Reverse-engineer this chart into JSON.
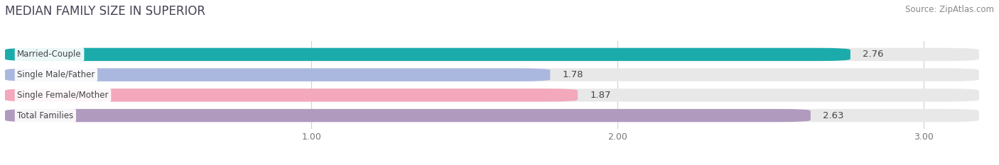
{
  "title": "MEDIAN FAMILY SIZE IN SUPERIOR",
  "source": "Source: ZipAtlas.com",
  "categories": [
    "Married-Couple",
    "Single Male/Father",
    "Single Female/Mother",
    "Total Families"
  ],
  "values": [
    2.76,
    1.78,
    1.87,
    2.63
  ],
  "bar_colors": [
    "#1aabaa",
    "#aab8e0",
    "#f4a8bc",
    "#b09abe"
  ],
  "bar_bg_color": "#e8e8e8",
  "xlim_left": 0.0,
  "xlim_right": 3.18,
  "xstart": 0.0,
  "xticks": [
    1.0,
    2.0,
    3.0
  ],
  "xtick_labels": [
    "1.00",
    "2.00",
    "3.00"
  ],
  "title_fontsize": 12,
  "source_fontsize": 8.5,
  "bar_label_fontsize": 9.5,
  "category_fontsize": 8.5,
  "tick_fontsize": 9,
  "bar_height": 0.64,
  "rounding_size": 0.1,
  "background_color": "#ffffff",
  "grid_color": "#d0d0d0",
  "title_color": "#444455",
  "source_color": "#888888",
  "label_color": "#444444",
  "value_label_color": "#444444"
}
